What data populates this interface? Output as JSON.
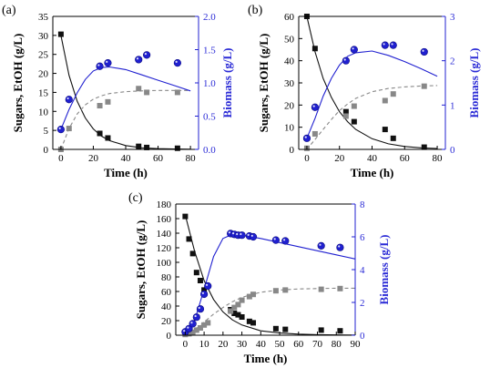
{
  "colors": {
    "sugars": "#111111",
    "ethanol": "#888888",
    "biomass": "#2020d0",
    "axis": "#000000"
  },
  "chart_data": [
    {
      "panel": "(a)",
      "type": "scatter",
      "xlabel": "Time (h)",
      "ylabel": "Sugars, EtOH (g/L)",
      "y2label": "Biomass (g/L)",
      "xlim": [
        -5,
        85
      ],
      "xticks": [
        0,
        20,
        40,
        60,
        80
      ],
      "ylim": [
        0,
        35
      ],
      "yticks": [
        0,
        5,
        10,
        15,
        20,
        25,
        30,
        35
      ],
      "y2lim": [
        0,
        2.0
      ],
      "y2ticks": [
        "0.0",
        "0.5",
        "1.0",
        "1.5",
        "2.0"
      ],
      "series": [
        {
          "role": "sugars",
          "axis": "left",
          "marker": "square",
          "x": [
            0,
            24,
            29,
            48,
            53,
            72
          ],
          "y": [
            30.3,
            4.2,
            3.0,
            0.8,
            0.5,
            0.3
          ]
        },
        {
          "role": "ethanol",
          "axis": "left",
          "marker": "square",
          "x": [
            0,
            5,
            24,
            29,
            48,
            53,
            72
          ],
          "y": [
            0,
            5.5,
            11.5,
            12.5,
            16.0,
            15.0,
            15.0
          ]
        },
        {
          "role": "biomass",
          "axis": "right",
          "marker": "circle",
          "x": [
            0,
            5,
            24,
            29,
            48,
            53,
            72
          ],
          "y": [
            0.3,
            0.75,
            1.25,
            1.3,
            1.35,
            1.42,
            1.3
          ]
        }
      ],
      "fits": [
        {
          "role": "sugars",
          "axis": "left",
          "style": "solid",
          "x": [
            0,
            5,
            10,
            15,
            20,
            25,
            30,
            40,
            50,
            60,
            70,
            80
          ],
          "y": [
            30.0,
            19.5,
            12.7,
            8.3,
            5.4,
            3.5,
            2.3,
            1.0,
            0.4,
            0.2,
            0.1,
            0.05
          ]
        },
        {
          "role": "ethanol",
          "axis": "left",
          "style": "dashed",
          "x": [
            0,
            5,
            10,
            15,
            20,
            25,
            30,
            40,
            50,
            60,
            70,
            80
          ],
          "y": [
            0,
            5.5,
            9.3,
            11.7,
            13.2,
            14.1,
            14.7,
            15.2,
            15.4,
            15.5,
            15.5,
            15.5
          ]
        },
        {
          "role": "biomass",
          "axis": "right",
          "style": "solid",
          "x": [
            0,
            5,
            10,
            15,
            20,
            25,
            30,
            40,
            50,
            60,
            70,
            80
          ],
          "y": [
            0.3,
            0.6,
            0.85,
            1.05,
            1.18,
            1.23,
            1.24,
            1.2,
            1.12,
            1.04,
            0.96,
            0.88
          ]
        }
      ]
    },
    {
      "panel": "(b)",
      "type": "scatter",
      "xlabel": "Time (h)",
      "ylabel": "Sugars, EtOH (g/L)",
      "y2label": "Biomass (g/L)",
      "xlim": [
        -5,
        85
      ],
      "xticks": [
        0,
        20,
        40,
        60,
        80
      ],
      "ylim": [
        0,
        60
      ],
      "yticks": [
        0,
        10,
        20,
        30,
        40,
        50,
        60
      ],
      "y2lim": [
        0,
        3
      ],
      "y2ticks": [
        "0",
        "1",
        "2",
        "3"
      ],
      "series": [
        {
          "role": "sugars",
          "axis": "left",
          "marker": "square",
          "x": [
            0,
            5,
            24,
            29,
            48,
            53,
            72
          ],
          "y": [
            60.0,
            45.5,
            17.0,
            12.5,
            9.0,
            5.0,
            1.0
          ]
        },
        {
          "role": "ethanol",
          "axis": "left",
          "marker": "square",
          "x": [
            0,
            5,
            24,
            29,
            48,
            53,
            72
          ],
          "y": [
            0.5,
            7.0,
            15.0,
            19.5,
            22.0,
            25.0,
            28.5
          ]
        },
        {
          "role": "biomass",
          "axis": "right",
          "marker": "circle",
          "x": [
            0,
            5,
            24,
            29,
            48,
            53,
            72
          ],
          "y": [
            0.25,
            0.95,
            2.0,
            2.25,
            2.35,
            2.35,
            2.2
          ]
        }
      ],
      "fits": [
        {
          "role": "sugars",
          "axis": "left",
          "style": "solid",
          "x": [
            0,
            5,
            10,
            15,
            20,
            25,
            30,
            40,
            50,
            60,
            70,
            80
          ],
          "y": [
            60.0,
            44.0,
            32.0,
            23.5,
            17.0,
            12.5,
            9.0,
            4.8,
            2.5,
            1.3,
            0.7,
            0.4
          ]
        },
        {
          "role": "ethanol",
          "axis": "left",
          "style": "dashed",
          "x": [
            0,
            5,
            10,
            15,
            20,
            25,
            30,
            40,
            50,
            60,
            70,
            80
          ],
          "y": [
            0,
            4.5,
            9.0,
            13.5,
            17.5,
            20.5,
            23.0,
            26.0,
            27.5,
            28.2,
            28.6,
            28.8
          ]
        },
        {
          "role": "biomass",
          "axis": "right",
          "style": "solid",
          "x": [
            0,
            5,
            10,
            15,
            20,
            25,
            30,
            40,
            50,
            60,
            70,
            80
          ],
          "y": [
            0.25,
            0.7,
            1.2,
            1.6,
            1.9,
            2.1,
            2.18,
            2.22,
            2.12,
            1.98,
            1.82,
            1.65
          ]
        }
      ]
    },
    {
      "panel": "(c)",
      "type": "scatter",
      "xlabel": "Time (h)",
      "ylabel": "Sugars, EtOH (g/L)",
      "y2label": "Biomass (g/L)",
      "xlim": [
        -5,
        90
      ],
      "xticks": [
        0,
        10,
        20,
        30,
        40,
        50,
        60,
        70,
        80,
        90
      ],
      "ylim": [
        0,
        180
      ],
      "yticks": [
        0,
        20,
        40,
        60,
        80,
        100,
        120,
        140,
        160,
        180
      ],
      "y2lim": [
        0,
        8
      ],
      "y2ticks": [
        "0",
        "2",
        "4",
        "6",
        "8"
      ],
      "series": [
        {
          "role": "sugars",
          "axis": "left",
          "marker": "square",
          "x": [
            0,
            2,
            4,
            6,
            8,
            10,
            24,
            26,
            28,
            30,
            34,
            36,
            48,
            53,
            72,
            82
          ],
          "y": [
            163,
            132,
            112,
            86,
            75,
            62,
            35,
            30,
            28,
            25,
            19,
            17,
            9,
            8,
            7,
            6
          ]
        },
        {
          "role": "ethanol",
          "axis": "left",
          "marker": "square",
          "x": [
            0,
            2,
            4,
            6,
            8,
            10,
            12,
            24,
            26,
            28,
            30,
            34,
            36,
            48,
            53,
            72,
            82
          ],
          "y": [
            1,
            2,
            4,
            7,
            10,
            14,
            17,
            33,
            38,
            42,
            48,
            53,
            56,
            61,
            62,
            63,
            64
          ]
        },
        {
          "role": "biomass",
          "axis": "right",
          "marker": "circle",
          "x": [
            0,
            2,
            4,
            6,
            8,
            10,
            12,
            24,
            26,
            28,
            30,
            34,
            36,
            48,
            53,
            72,
            82
          ],
          "y": [
            0.2,
            0.4,
            0.7,
            1.1,
            1.6,
            2.5,
            3.0,
            6.2,
            6.15,
            6.1,
            6.1,
            6.05,
            6.0,
            5.8,
            5.75,
            5.45,
            5.35
          ]
        }
      ],
      "fits": [
        {
          "role": "sugars",
          "axis": "left",
          "style": "solid",
          "x": [
            0,
            5,
            10,
            15,
            20,
            25,
            30,
            40,
            50,
            60,
            70,
            80,
            90
          ],
          "y": [
            165,
            115,
            75,
            49,
            32,
            21,
            14,
            6,
            3,
            1.5,
            0.8,
            0.4,
            0.2
          ]
        },
        {
          "role": "ethanol",
          "axis": "left",
          "style": "dashed",
          "x": [
            0,
            5,
            10,
            15,
            20,
            25,
            30,
            40,
            50,
            60,
            70,
            80,
            90
          ],
          "y": [
            0,
            7,
            18,
            29,
            38,
            46,
            52,
            59,
            62,
            63.5,
            64,
            64.5,
            64.5
          ]
        },
        {
          "role": "biomass",
          "axis": "right",
          "style": "solid",
          "x": [
            0,
            5,
            10,
            15,
            20,
            25,
            30,
            40,
            50,
            60,
            70,
            80,
            90
          ],
          "y": [
            0.1,
            0.9,
            2.8,
            4.8,
            5.9,
            6.15,
            6.1,
            5.9,
            5.65,
            5.4,
            5.15,
            4.9,
            4.65
          ]
        }
      ]
    }
  ]
}
